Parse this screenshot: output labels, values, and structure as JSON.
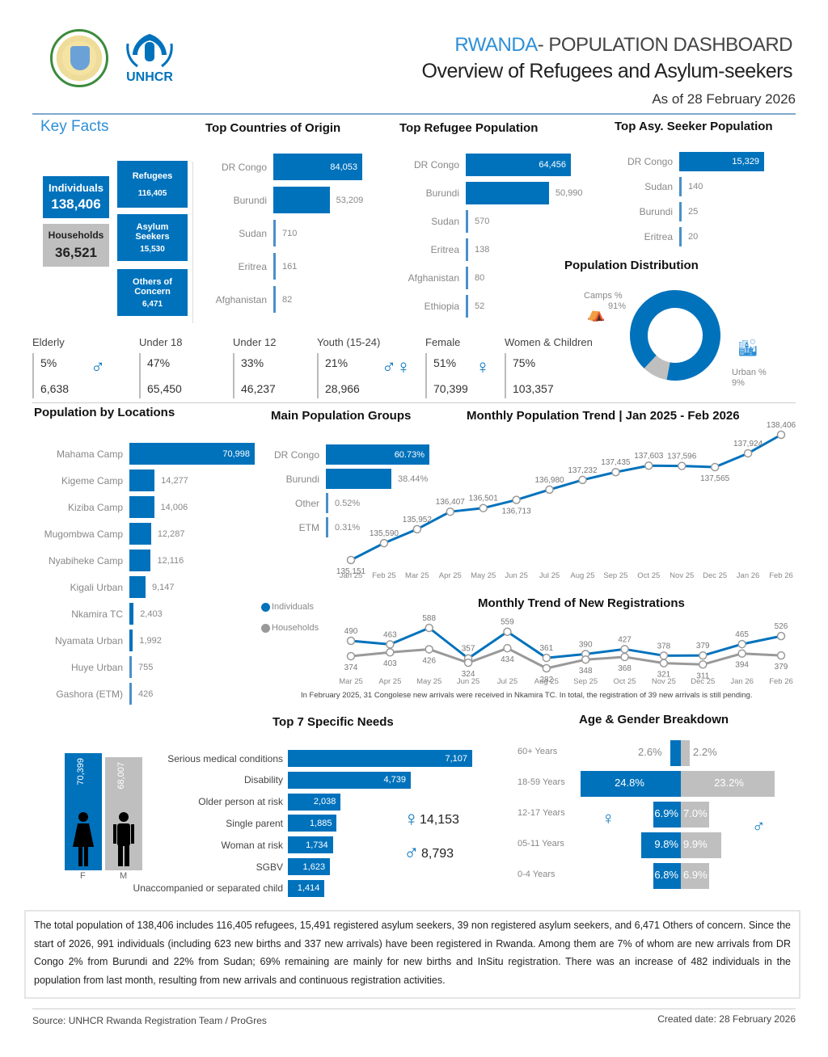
{
  "header": {
    "title_accent": "RWANDA",
    "title_rest": "- POPULATION DASHBOARD",
    "subtitle": "Overview of Refugees and Asylum-seekers",
    "as_of": "As of 28 February 2026",
    "logos": [
      "rwanda-coat-of-arms",
      "unhcr-logo"
    ],
    "unhcr_text": "UNHCR"
  },
  "key_facts": {
    "title": "Key Facts",
    "individuals_label": "Individuals",
    "individuals_value": "138,406",
    "households_label": "Households",
    "households_value": "36,521",
    "refugees_label": "Refugees",
    "refugees_value": "116,405",
    "asylum_label_1": "Asylum",
    "asylum_label_2": "Seekers",
    "asylum_value": "15,530",
    "others_label_1": "Others of",
    "others_label_2": "Concern",
    "others_value": "6,471"
  },
  "top_countries": {
    "title": "Top Countries of Origin",
    "items": [
      {
        "label": "DR Congo",
        "value": 84053,
        "text": "84,053"
      },
      {
        "label": "Burundi",
        "value": 53209,
        "text": "53,209"
      },
      {
        "label": "Sudan",
        "value": 710,
        "text": "710"
      },
      {
        "label": "Eritrea",
        "value": 161,
        "text": "161"
      },
      {
        "label": "Afghanistan",
        "value": 82,
        "text": "82"
      }
    ]
  },
  "top_refugee": {
    "title": "Top Refugee Population",
    "items": [
      {
        "label": "DR Congo",
        "value": 64456,
        "text": "64,456"
      },
      {
        "label": "Burundi",
        "value": 50990,
        "text": "50,990"
      },
      {
        "label": "Sudan",
        "value": 570,
        "text": "570"
      },
      {
        "label": "Eritrea",
        "value": 138,
        "text": "138"
      },
      {
        "label": "Afghanistan",
        "value": 80,
        "text": "80"
      },
      {
        "label": "Ethiopia",
        "value": 52,
        "text": "52"
      }
    ]
  },
  "top_asylum": {
    "title": "Top Asy. Seeker Population",
    "items": [
      {
        "label": "DR Congo",
        "value": 15329,
        "text": "15,329"
      },
      {
        "label": "Sudan",
        "value": 140,
        "text": "140"
      },
      {
        "label": "Burundi",
        "value": 25,
        "text": "25"
      },
      {
        "label": "Eritrea",
        "value": 20,
        "text": "20"
      }
    ]
  },
  "distribution": {
    "title": "Population Distribution",
    "camps_label": "Camps %",
    "camps_pct": "91%",
    "camps_value": 91,
    "urban_label": "Urban %",
    "urban_pct": "9%",
    "urban_value": 9,
    "colors": {
      "camps": "#0072BC",
      "urban": "#BFBFBF"
    }
  },
  "demographics": [
    {
      "label": "Elderly",
      "pct": "5%",
      "value": "6,638",
      "icon": "elderly-person-icon"
    },
    {
      "label": "Under 18",
      "pct": "47%",
      "value": "65,450"
    },
    {
      "label": "Under 12",
      "pct": "33%",
      "value": "46,237"
    },
    {
      "label": "Youth (15-24)",
      "pct": "21%",
      "value": "28,966",
      "icon": "youth-couple-icon"
    },
    {
      "label": "Female",
      "pct": "51%",
      "value": "70,399",
      "icon": "female-icon"
    },
    {
      "label": "Women & Children",
      "pct": "75%",
      "value": "103,357"
    }
  ],
  "locations": {
    "title": "Population by Locations",
    "items": [
      {
        "label": "Mahama Camp",
        "value": 70998,
        "text": "70,998"
      },
      {
        "label": "Kigeme Camp",
        "value": 14277,
        "text": "14,277"
      },
      {
        "label": "Kiziba Camp",
        "value": 14006,
        "text": "14,006"
      },
      {
        "label": "Mugombwa Camp",
        "value": 12287,
        "text": "12,287"
      },
      {
        "label": "Nyabiheke Camp",
        "value": 12116,
        "text": "12,116"
      },
      {
        "label": "Kigali Urban",
        "value": 9147,
        "text": "9,147"
      },
      {
        "label": "Nkamira TC",
        "value": 2403,
        "text": "2,403"
      },
      {
        "label": "Nyamata Urban",
        "value": 1992,
        "text": "1,992"
      },
      {
        "label": "Huye Urban",
        "value": 755,
        "text": "755"
      },
      {
        "label": "Gashora (ETM)",
        "value": 426,
        "text": "426"
      }
    ]
  },
  "main_groups": {
    "title": "Main Population Groups",
    "items": [
      {
        "label": "DR Congo",
        "value": 60.73,
        "text": "60.73%"
      },
      {
        "label": "Burundi",
        "value": 38.44,
        "text": "38.44%"
      },
      {
        "label": "Other",
        "value": 0.52,
        "text": "0.52%"
      },
      {
        "label": "ETM",
        "value": 0.31,
        "text": "0.31%"
      }
    ]
  },
  "chart_data": [
    {
      "type": "line",
      "title": "Monthly Population Trend | Jan 2025 - Feb 2026",
      "categories": [
        "Jan 25",
        "Feb 25",
        "Mar 25",
        "Apr 25",
        "May 25",
        "Jun 25",
        "Jul 25",
        "Aug 25",
        "Sep 25",
        "Oct 25",
        "Nov 25",
        "Dec 25",
        "Jan 26",
        "Feb 26"
      ],
      "values": [
        135151,
        135590,
        135952,
        136407,
        136501,
        136713,
        136980,
        137232,
        137435,
        137603,
        137596,
        137565,
        137924,
        138406
      ],
      "labels": [
        "135,151",
        "135,590",
        "135,952",
        "136,407",
        "136,501",
        "136,713",
        "136,980",
        "137,232",
        "137,435",
        "137,603",
        "137,596",
        "137,565",
        "137,924",
        "138,406"
      ],
      "color": "#0072BC"
    },
    {
      "type": "line",
      "title": "Monthly Trend of New Registrations",
      "categories": [
        "Mar 25",
        "Apr 25",
        "May 25",
        "Jun 25",
        "Jul 25",
        "Aug 25",
        "Sep 25",
        "Oct 25",
        "Nov 25",
        "Dec 25",
        "Jan 26",
        "Feb 26"
      ],
      "series": [
        {
          "name": "Individuals",
          "color": "#0072BC",
          "values": [
            490,
            463,
            588,
            357,
            559,
            361,
            390,
            427,
            378,
            379,
            465,
            526
          ]
        },
        {
          "name": "Households",
          "color": "#999999",
          "values": [
            374,
            403,
            426,
            324,
            434,
            282,
            348,
            368,
            321,
            311,
            394,
            379
          ]
        }
      ],
      "legend": [
        "Individuals",
        "Households"
      ],
      "note": "In February 2025, 31 Congolese new arrivals were received in Nkamira TC. In total, the registration of 39 new arrivals is still pending."
    },
    {
      "type": "bar",
      "title": "Top 7 Specific Needs",
      "categories": [
        "Serious medical conditions",
        "Disability",
        "Older person at risk",
        "Single parent",
        "Woman at risk",
        "SGBV",
        "Unaccompanied or separated child"
      ],
      "values": [
        7107,
        4739,
        2038,
        1885,
        1734,
        1623,
        1414
      ],
      "labels": [
        "7,107",
        "4,739",
        "2,038",
        "1,885",
        "1,734",
        "1,623",
        "1,414"
      ]
    },
    {
      "type": "bar",
      "title": "Age & Gender Breakdown",
      "categories": [
        "60+ Years",
        "18-59 Years",
        "12-17 Years",
        "05-11 Years",
        "0-4 Years"
      ],
      "series": [
        {
          "name": "Female",
          "color": "#0072BC",
          "values": [
            2.6,
            24.8,
            6.9,
            9.8,
            6.8
          ],
          "labels": [
            "2.6%",
            "24.8%",
            "6.9%",
            "9.8%",
            "6.8%"
          ]
        },
        {
          "name": "Male",
          "color": "#BFBFBF",
          "values": [
            2.2,
            23.2,
            7.0,
            9.9,
            6.9
          ],
          "labels": [
            "2.2%",
            "23.2%",
            "7.0%",
            "9.9%",
            "6.9%"
          ]
        }
      ]
    }
  ],
  "gender_totals": {
    "female_value": "70,399",
    "male_value": "68,007",
    "female_label": "F",
    "male_label": "M"
  },
  "needs_gender": {
    "female_total": "14,153",
    "male_total": "8,793"
  },
  "summary": "The total population of 138,406 includes 116,405 refugees, 15,491 registered asylum seekers, 39 non registered asylum seekers, and 6,471 Others of concern. Since the start of 2026, 991 individuals (including 623 new births and 337 new arrivals) have been registered in Rwanda. Among them are 7% of whom are new arrivals from DR Congo 2% from Burundi and 22% from Sudan; 69% remaining are mainly for new births and InSitu registration. There was an increase of 482 individuals in the population from last month, resulting from new arrivals and continuous registration activities.",
  "footer": {
    "source": "Source: UNHCR Rwanda Registration Team / ProGres",
    "created": "Created date: 28 February 2026"
  }
}
